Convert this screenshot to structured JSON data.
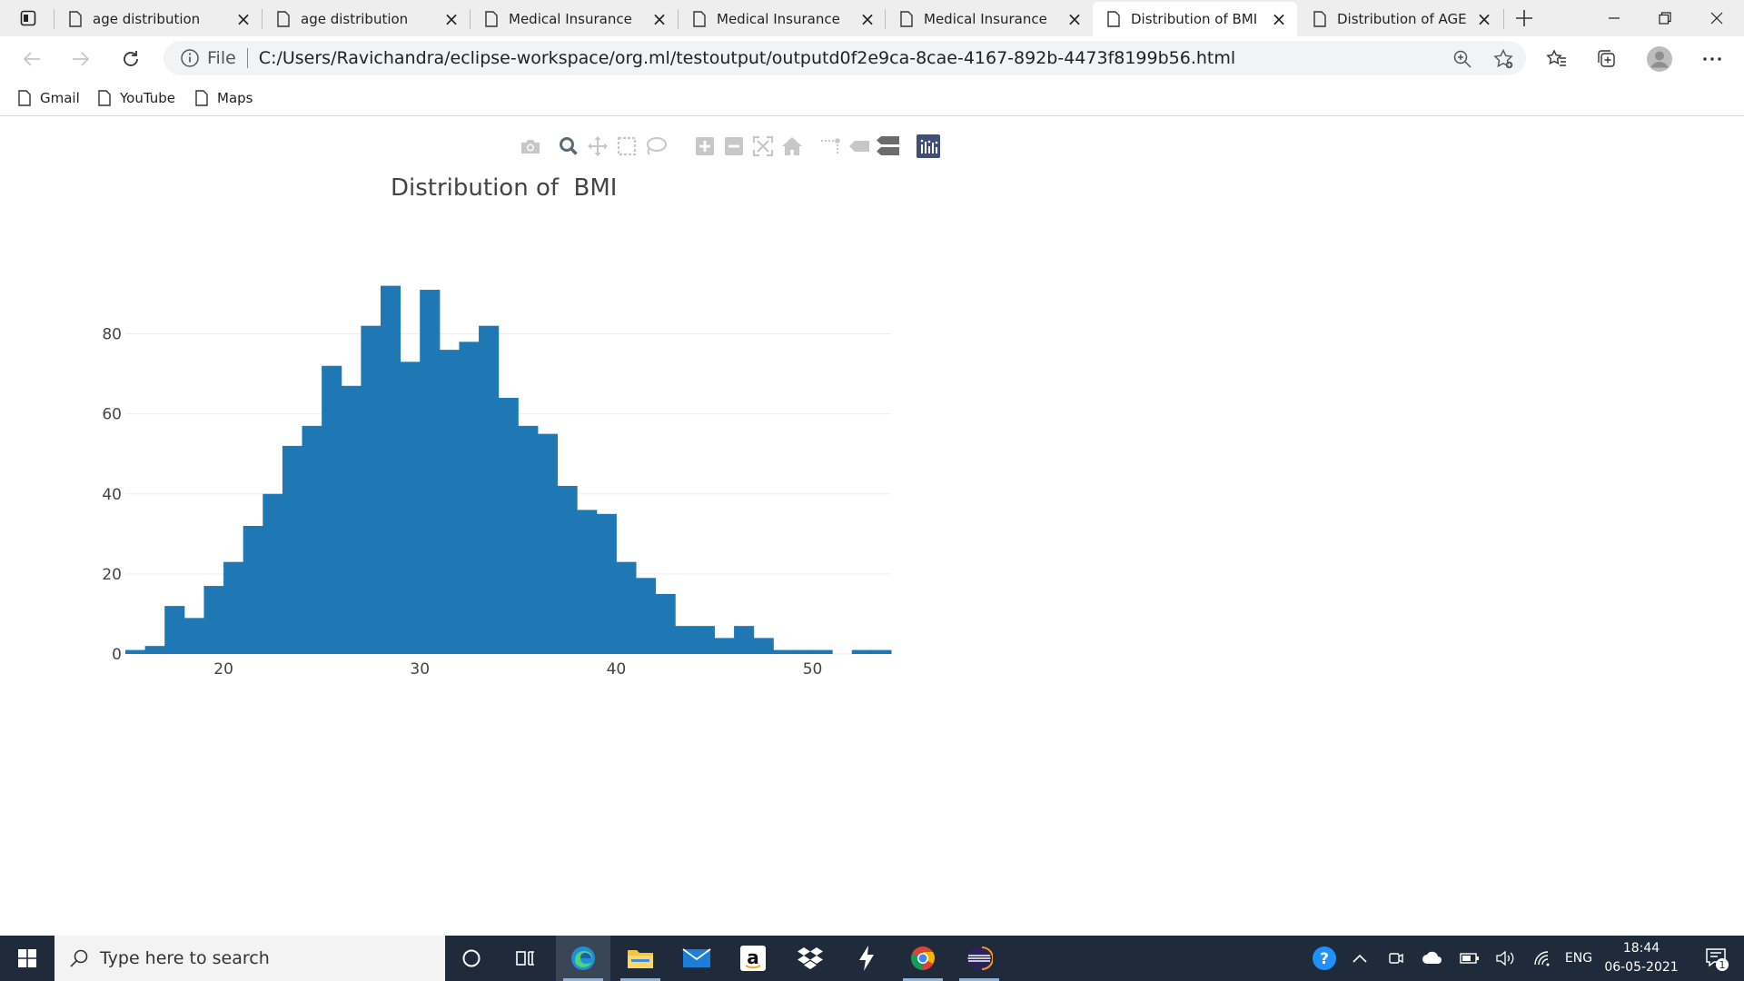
{
  "browser": {
    "tabs": [
      {
        "title": "age distribution",
        "active": false
      },
      {
        "title": "age distribution",
        "active": false
      },
      {
        "title": "Medical Insurance",
        "active": false
      },
      {
        "title": "Medical Insurance",
        "active": false
      },
      {
        "title": "Medical Insurance",
        "active": false
      },
      {
        "title": "Distribution of BMI",
        "active": true
      },
      {
        "title": "Distribution of AGE",
        "active": false
      }
    ],
    "address": {
      "scheme_label": "File",
      "url": "C:/Users/Ravichandra/eclipse-workspace/org.ml/testoutput/outputd0f2e9ca-8cae-4167-892b-4473f8199b56.html"
    },
    "bookmarks": [
      "Gmail",
      "YouTube",
      "Maps"
    ]
  },
  "toolbar_icons": [
    "camera-icon",
    "zoom-icon",
    "pan-icon",
    "box-select-icon",
    "lasso-select-icon",
    "zoom-in-icon",
    "zoom-out-icon",
    "autoscale-icon",
    "reset-axes-icon",
    "spike-lines-icon",
    "hover-closest-icon",
    "hover-compare-icon",
    "plotly-logo-icon"
  ],
  "chart_data": {
    "type": "bar",
    "title": "Distribution of  BMI",
    "xlabel": "",
    "ylabel": "",
    "bar_color": "#1f77b4",
    "grid": true,
    "x_ticks": [
      20,
      30,
      40,
      50
    ],
    "y_ticks": [
      0,
      20,
      40,
      60,
      80
    ],
    "xlim": [
      15,
      54
    ],
    "ylim": [
      0,
      96
    ],
    "bin_width": 1,
    "bins": [
      {
        "x0": 15,
        "count": 1
      },
      {
        "x0": 16,
        "count": 2
      },
      {
        "x0": 17,
        "count": 12
      },
      {
        "x0": 18,
        "count": 9
      },
      {
        "x0": 19,
        "count": 17
      },
      {
        "x0": 20,
        "count": 23
      },
      {
        "x0": 21,
        "count": 32
      },
      {
        "x0": 22,
        "count": 40
      },
      {
        "x0": 23,
        "count": 52
      },
      {
        "x0": 24,
        "count": 57
      },
      {
        "x0": 25,
        "count": 72
      },
      {
        "x0": 26,
        "count": 67
      },
      {
        "x0": 27,
        "count": 82
      },
      {
        "x0": 28,
        "count": 92
      },
      {
        "x0": 29,
        "count": 73
      },
      {
        "x0": 30,
        "count": 91
      },
      {
        "x0": 31,
        "count": 76
      },
      {
        "x0": 32,
        "count": 78
      },
      {
        "x0": 33,
        "count": 82
      },
      {
        "x0": 34,
        "count": 64
      },
      {
        "x0": 35,
        "count": 57
      },
      {
        "x0": 36,
        "count": 55
      },
      {
        "x0": 37,
        "count": 42
      },
      {
        "x0": 38,
        "count": 36
      },
      {
        "x0": 39,
        "count": 35
      },
      {
        "x0": 40,
        "count": 23
      },
      {
        "x0": 41,
        "count": 19
      },
      {
        "x0": 42,
        "count": 15
      },
      {
        "x0": 43,
        "count": 7
      },
      {
        "x0": 44,
        "count": 7
      },
      {
        "x0": 45,
        "count": 4
      },
      {
        "x0": 46,
        "count": 7
      },
      {
        "x0": 47,
        "count": 4
      },
      {
        "x0": 48,
        "count": 1
      },
      {
        "x0": 49,
        "count": 1
      },
      {
        "x0": 50,
        "count": 1
      },
      {
        "x0": 51,
        "count": 0
      },
      {
        "x0": 52,
        "count": 1
      },
      {
        "x0": 53,
        "count": 1
      }
    ]
  },
  "taskbar": {
    "search_placeholder": "Type here to search",
    "language": "ENG",
    "time": "18:44",
    "date": "06-05-2021",
    "notification_count": "1"
  }
}
